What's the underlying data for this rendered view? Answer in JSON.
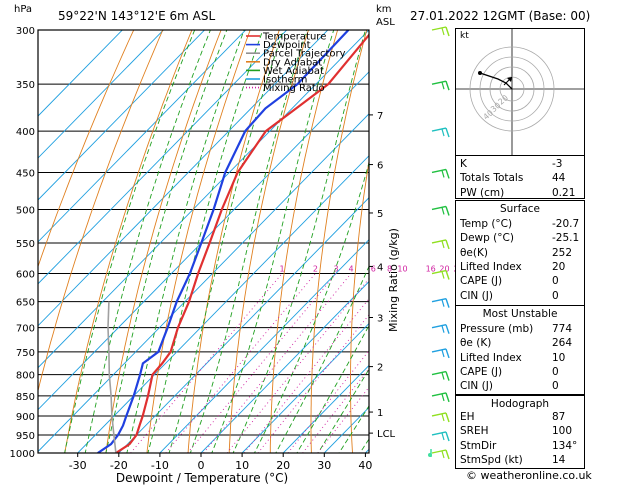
{
  "header": {
    "hpa": "hPa",
    "location": "59°22'N  143°12'E  6m  ASL",
    "km": "km",
    "asl": "ASL",
    "datetime": "27.01.2022  12GMT  (Base: 00)"
  },
  "chart_data": {
    "type": "line",
    "title": "",
    "xlabel": "Dewpoint / Temperature (°C)",
    "ylabel": "Mixing Ratio (g/kg)",
    "xlim": [
      -35,
      40
    ],
    "pressure_levels": [
      300,
      350,
      400,
      450,
      500,
      550,
      600,
      650,
      700,
      750,
      800,
      850,
      900,
      950,
      1000
    ],
    "x_ticks": [
      -30,
      -20,
      -10,
      0,
      10,
      20,
      30,
      40
    ],
    "km_ticks": [
      {
        "label": "7",
        "p": 382
      },
      {
        "label": "6",
        "p": 440
      },
      {
        "label": "5",
        "p": 505
      },
      {
        "label": "4",
        "p": 588
      },
      {
        "label": "3",
        "p": 680
      },
      {
        "label": "2",
        "p": 782
      },
      {
        "label": "1",
        "p": 890
      },
      {
        "label": "LCL",
        "p": 945
      }
    ],
    "mixing_ratio_labels": [
      "1",
      "2",
      "3",
      "4",
      "6",
      "8",
      "10",
      "16",
      "20",
      "25"
    ],
    "series": [
      {
        "name": "Temperature",
        "color": "#e03030",
        "points": [
          [
            1000,
            -20.7
          ],
          [
            975,
            -19.5
          ],
          [
            950,
            -20.0
          ],
          [
            925,
            -21.5
          ],
          [
            900,
            -23.0
          ],
          [
            850,
            -26.5
          ],
          [
            800,
            -30.5
          ],
          [
            775,
            -30.8
          ],
          [
            750,
            -31.5
          ],
          [
            700,
            -35.5
          ],
          [
            650,
            -39.0
          ],
          [
            600,
            -43.5
          ],
          [
            550,
            -48.0
          ],
          [
            500,
            -53.0
          ],
          [
            450,
            -58.0
          ],
          [
            400,
            -61.0
          ],
          [
            375,
            -59.0
          ],
          [
            350,
            -57.0
          ],
          [
            300,
            -59.0
          ]
        ]
      },
      {
        "name": "Dewpoint",
        "color": "#2040e0",
        "points": [
          [
            1000,
            -25.1
          ],
          [
            975,
            -24.0
          ],
          [
            950,
            -24.5
          ],
          [
            925,
            -25.5
          ],
          [
            900,
            -27.0
          ],
          [
            850,
            -30.0
          ],
          [
            800,
            -33.5
          ],
          [
            775,
            -35.5
          ],
          [
            750,
            -34.5
          ],
          [
            700,
            -38.0
          ],
          [
            650,
            -42.0
          ],
          [
            600,
            -45.5
          ],
          [
            550,
            -50.0
          ],
          [
            500,
            -55.0
          ],
          [
            450,
            -61.0
          ],
          [
            400,
            -66.0
          ],
          [
            375,
            -66.5
          ],
          [
            350,
            -64.5
          ],
          [
            300,
            -65.0
          ]
        ]
      },
      {
        "name": "Parcel Trajectory",
        "color": "#a0a0a0",
        "points": [
          [
            1000,
            -20.7
          ],
          [
            950,
            -25.5
          ],
          [
            900,
            -30.5
          ],
          [
            850,
            -35.5
          ],
          [
            800,
            -41.0
          ],
          [
            750,
            -46.5
          ],
          [
            700,
            -52.5
          ],
          [
            650,
            -58.5
          ]
        ]
      }
    ],
    "legend": [
      {
        "label": "Temperature",
        "color": "#e03030",
        "style": "solid"
      },
      {
        "label": "Dewpoint",
        "color": "#2040e0",
        "style": "solid"
      },
      {
        "label": "Parcel Trajectory",
        "color": "#909090",
        "style": "solid"
      },
      {
        "label": "Dry Adiabat",
        "color": "#e08020",
        "style": "solid"
      },
      {
        "label": "Wet Adiabat",
        "color": "#20a020",
        "style": "solid"
      },
      {
        "label": "Isotherm",
        "color": "#20a0e0",
        "style": "solid"
      },
      {
        "label": "Mixing Ratio",
        "color": "#d020a0",
        "style": "dotted"
      }
    ],
    "legend_placement": "top-right",
    "wind_barbs": [
      {
        "p": 300,
        "color": "#90e020"
      },
      {
        "p": 350,
        "color": "#20c040"
      },
      {
        "p": 400,
        "color": "#20c0c0"
      },
      {
        "p": 450,
        "color": "#20c040"
      },
      {
        "p": 500,
        "color": "#20c040"
      },
      {
        "p": 550,
        "color": "#90e020"
      },
      {
        "p": 600,
        "color": "#90e020"
      },
      {
        "p": 650,
        "color": "#20a0e0"
      },
      {
        "p": 700,
        "color": "#20a0e0"
      },
      {
        "p": 750,
        "color": "#20a0e0"
      },
      {
        "p": 800,
        "color": "#20c040"
      },
      {
        "p": 850,
        "color": "#20c040"
      },
      {
        "p": 900,
        "color": "#90e020"
      },
      {
        "p": 950,
        "color": "#20c0c0"
      },
      {
        "p": 1000,
        "color": "#90e020"
      }
    ]
  },
  "hodograph": {
    "label": "kt",
    "rings": [
      "20",
      "30",
      "40"
    ]
  },
  "indices": [
    {
      "k": "K",
      "v": "-3"
    },
    {
      "k": "Totals Totals",
      "v": "44"
    },
    {
      "k": "PW (cm)",
      "v": "0.21"
    }
  ],
  "surface": {
    "title": "Surface",
    "rows": [
      {
        "k": "Temp (°C)",
        "v": "-20.7"
      },
      {
        "k": "Dewp (°C)",
        "v": "-25.1"
      },
      {
        "k": "θe(K)",
        "v": "252"
      },
      {
        "k": "Lifted Index",
        "v": "20"
      },
      {
        "k": "CAPE (J)",
        "v": "0"
      },
      {
        "k": "CIN (J)",
        "v": "0"
      }
    ]
  },
  "most_unstable": {
    "title": "Most Unstable",
    "rows": [
      {
        "k": "Pressure (mb)",
        "v": "774"
      },
      {
        "k": "θe (K)",
        "v": "264"
      },
      {
        "k": "Lifted Index",
        "v": "10"
      },
      {
        "k": "CAPE (J)",
        "v": "0"
      },
      {
        "k": "CIN (J)",
        "v": "0"
      }
    ]
  },
  "hodograph_table": {
    "title": "Hodograph",
    "rows": [
      {
        "k": "EH",
        "v": "87"
      },
      {
        "k": "SREH",
        "v": "100"
      },
      {
        "k": "StmDir",
        "v": "134°"
      },
      {
        "k": "StmSpd (kt)",
        "v": "14"
      }
    ]
  },
  "footer": "© weatheronline.co.uk"
}
